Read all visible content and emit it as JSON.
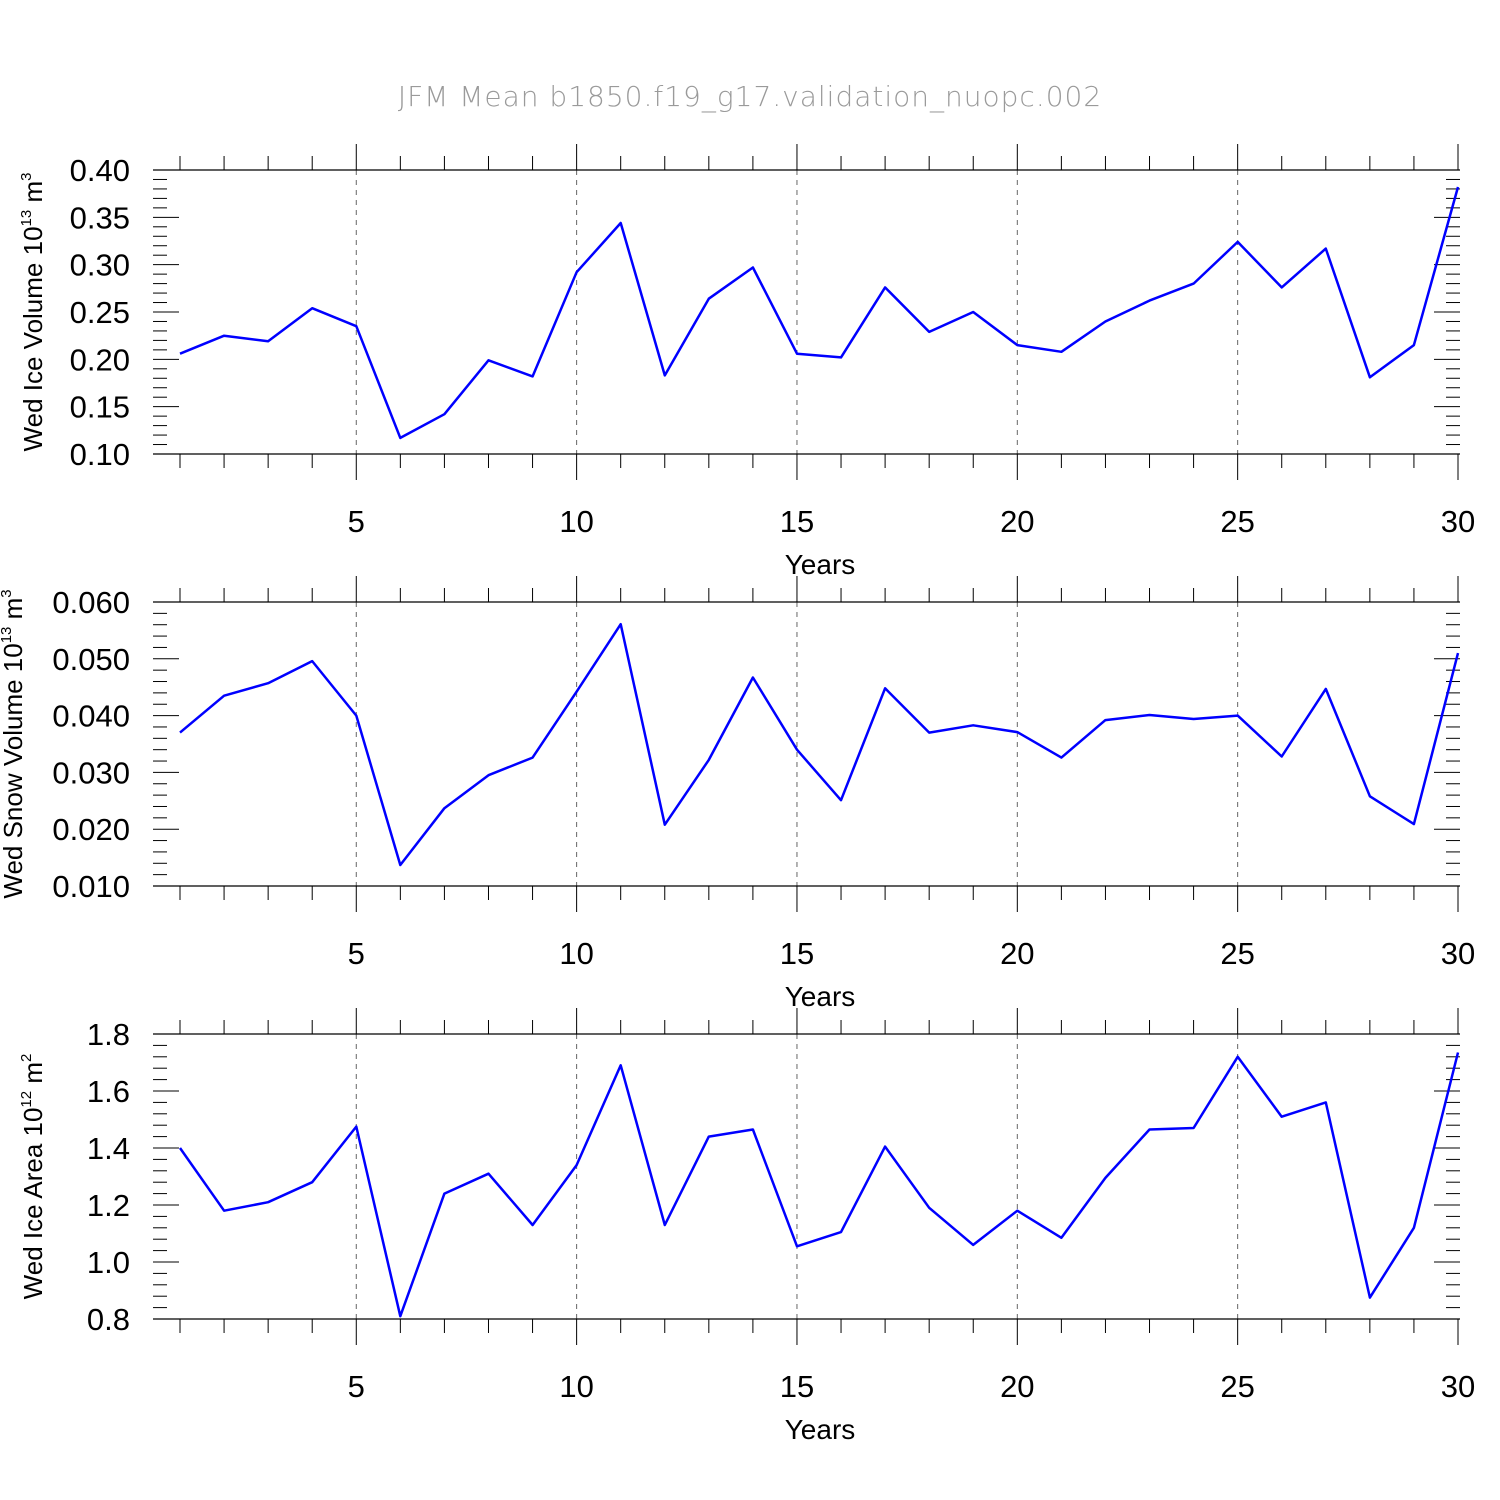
{
  "title": "JFM Mean b1850.f19_g17.validation_nuopc.002",
  "colors": {
    "line": "#0000ff",
    "axis": "#000000",
    "grid": "#666666",
    "title": "#9a9a9a"
  },
  "chart_data": [
    {
      "type": "line",
      "xlabel": "Years",
      "ylabel": {
        "text": "Wed Ice Volume 10",
        "exp": "13",
        "unit": " m",
        "unit_exp": "3"
      },
      "xlim": [
        1,
        30
      ],
      "ylim": [
        0.1,
        0.4
      ],
      "xticks": [
        "5",
        "10",
        "15",
        "20",
        "25",
        "30"
      ],
      "yticks": [
        "0.10",
        "0.15",
        "0.20",
        "0.25",
        "0.30",
        "0.35",
        "0.40"
      ],
      "grid_x": [
        5,
        10,
        15,
        20,
        25
      ],
      "x": [
        1,
        2,
        3,
        4,
        5,
        6,
        7,
        8,
        9,
        10,
        11,
        12,
        13,
        14,
        15,
        16,
        17,
        18,
        19,
        20,
        21,
        22,
        23,
        24,
        25,
        26,
        27,
        28,
        29,
        30
      ],
      "series": [
        {
          "values": [
            0.206,
            0.225,
            0.219,
            0.254,
            0.235,
            0.117,
            0.142,
            0.199,
            0.182,
            0.292,
            0.344,
            0.183,
            0.264,
            0.297,
            0.206,
            0.202,
            0.276,
            0.229,
            0.25,
            0.215,
            0.208,
            0.24,
            0.262,
            0.28,
            0.324,
            0.276,
            0.317,
            0.181,
            0.215,
            0.382
          ]
        }
      ]
    },
    {
      "type": "line",
      "xlabel": "Years",
      "ylabel": {
        "text": "Wed Snow Volume 10",
        "exp": "13",
        "unit": " m",
        "unit_exp": "3"
      },
      "xlim": [
        1,
        30
      ],
      "ylim": [
        0.01,
        0.06
      ],
      "xticks": [
        "5",
        "10",
        "15",
        "20",
        "25",
        "30"
      ],
      "yticks": [
        "0.010",
        "0.020",
        "0.030",
        "0.040",
        "0.050",
        "0.060"
      ],
      "grid_x": [
        5,
        10,
        15,
        20,
        25
      ],
      "x": [
        1,
        2,
        3,
        4,
        5,
        6,
        7,
        8,
        9,
        10,
        11,
        12,
        13,
        14,
        15,
        16,
        17,
        18,
        19,
        20,
        21,
        22,
        23,
        24,
        25,
        26,
        27,
        28,
        29,
        30
      ],
      "series": [
        {
          "values": [
            0.037,
            0.0435,
            0.0457,
            0.0496,
            0.04,
            0.0137,
            0.0237,
            0.0295,
            0.0326,
            0.0442,
            0.0561,
            0.0208,
            0.0322,
            0.0467,
            0.034,
            0.0251,
            0.0448,
            0.037,
            0.0383,
            0.0371,
            0.0326,
            0.0392,
            0.0401,
            0.0394,
            0.04,
            0.0328,
            0.0447,
            0.0258,
            0.0209,
            0.051
          ]
        }
      ]
    },
    {
      "type": "line",
      "xlabel": "Years",
      "ylabel": {
        "text": "Wed Ice Area 10",
        "exp": "12",
        "unit": " m",
        "unit_exp": "2"
      },
      "xlim": [
        1,
        30
      ],
      "ylim": [
        0.8,
        1.8
      ],
      "xticks": [
        "5",
        "10",
        "15",
        "20",
        "25",
        "30"
      ],
      "yticks": [
        "0.8",
        "1.0",
        "1.2",
        "1.4",
        "1.6",
        "1.8"
      ],
      "grid_x": [
        5,
        10,
        15,
        20,
        25
      ],
      "x": [
        1,
        2,
        3,
        4,
        5,
        6,
        7,
        8,
        9,
        10,
        11,
        12,
        13,
        14,
        15,
        16,
        17,
        18,
        19,
        20,
        21,
        22,
        23,
        24,
        25,
        26,
        27,
        28,
        29,
        30
      ],
      "series": [
        {
          "values": [
            1.4,
            1.18,
            1.21,
            1.28,
            1.475,
            0.81,
            1.24,
            1.31,
            1.13,
            1.34,
            1.69,
            1.13,
            1.44,
            1.465,
            1.055,
            1.105,
            1.405,
            1.19,
            1.06,
            1.18,
            1.085,
            1.295,
            1.465,
            1.47,
            1.72,
            1.51,
            1.56,
            0.875,
            1.12,
            1.735
          ]
        }
      ]
    }
  ]
}
